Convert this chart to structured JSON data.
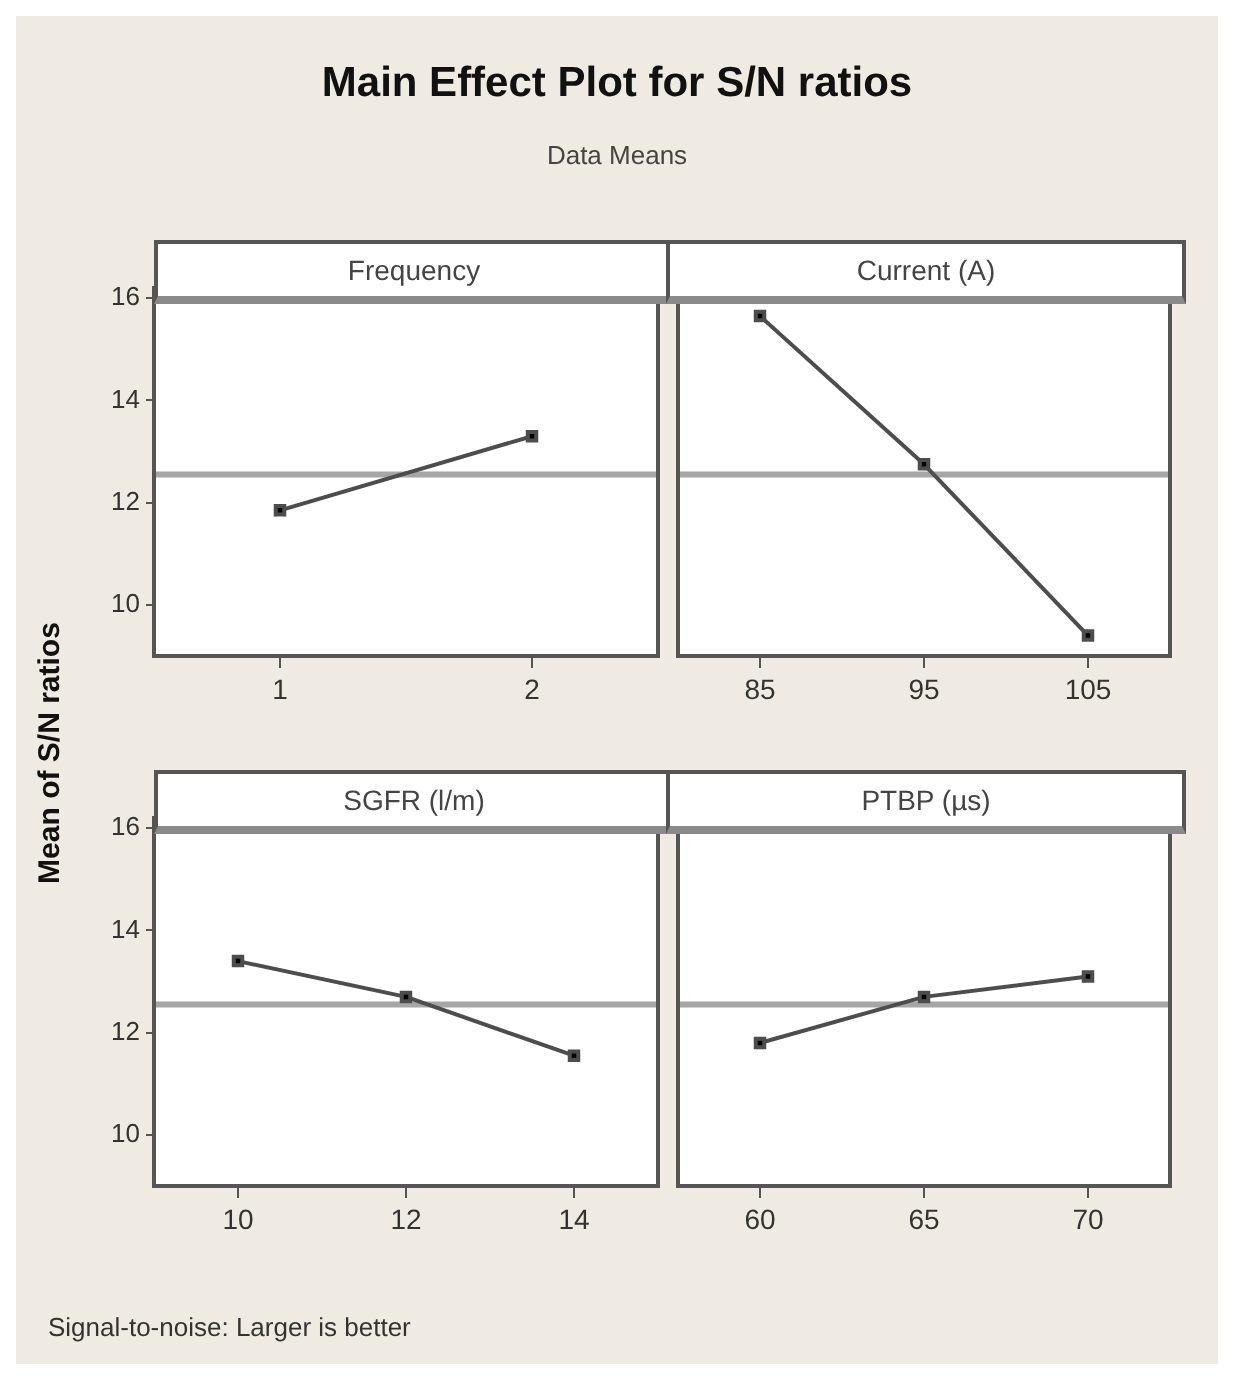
{
  "chart_data": [
    {
      "type": "other",
      "title": "Main Effect Plot for S/N ratios",
      "subtitle": "Data Means",
      "ylabel": "Mean of S/N ratios",
      "annotations": [
        "Signal-to-noise: Larger is better"
      ]
    },
    {
      "type": "line",
      "title": "Frequency",
      "categories": [
        "1",
        "2"
      ],
      "values": [
        11.85,
        13.3
      ],
      "color": "#4d4d4d",
      "marker": "square",
      "ylim": [
        9,
        16.2
      ],
      "yticks": [
        10,
        12,
        14,
        16
      ],
      "ref_lines": [
        {
          "axis": "y",
          "value": 12.55,
          "color": "#a6a6a6"
        }
      ]
    },
    {
      "type": "line",
      "title": "Current (A)",
      "categories": [
        "85",
        "95",
        "105"
      ],
      "values": [
        15.65,
        12.75,
        9.4
      ],
      "color": "#4d4d4d",
      "marker": "square",
      "ylim": [
        9,
        16.2
      ],
      "yticks": [
        10,
        12,
        14,
        16
      ],
      "tick_labels": "x",
      "ref_lines": [
        {
          "axis": "y",
          "value": 12.55,
          "color": "#a6a6a6"
        }
      ]
    },
    {
      "type": "line",
      "title": "SGFR (l/m)",
      "categories": [
        "10",
        "12",
        "14"
      ],
      "values": [
        13.4,
        12.7,
        11.55
      ],
      "color": "#4d4d4d",
      "marker": "square",
      "ylim": [
        9,
        16.2
      ],
      "yticks": [
        10,
        12,
        14,
        16
      ],
      "ref_lines": [
        {
          "axis": "y",
          "value": 12.55,
          "color": "#a6a6a6"
        }
      ]
    },
    {
      "type": "line",
      "title": "PTBP (µs)",
      "categories": [
        "60",
        "65",
        "70"
      ],
      "values": [
        11.8,
        12.7,
        13.1
      ],
      "color": "#4d4d4d",
      "marker": "square",
      "ylim": [
        9,
        16.2
      ],
      "yticks": [
        10,
        12,
        14,
        16
      ],
      "tick_labels": "x",
      "ref_lines": [
        {
          "axis": "y",
          "value": 12.55,
          "color": "#a6a6a6"
        }
      ]
    }
  ]
}
